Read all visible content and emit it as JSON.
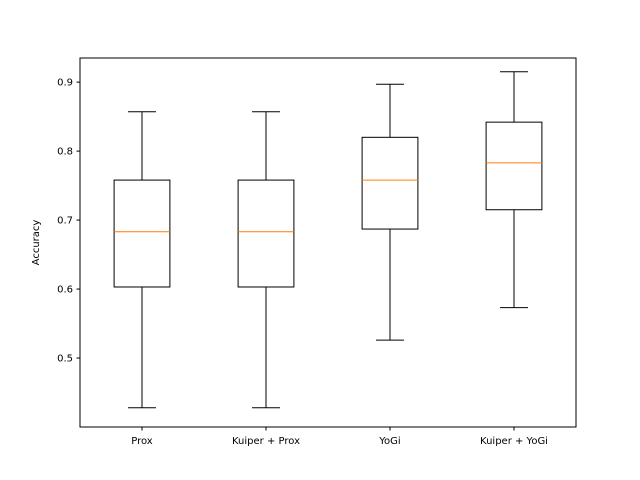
{
  "chart_data": {
    "type": "box",
    "title": "",
    "xlabel": "",
    "ylabel": "Accuracy",
    "ylim": [
      0.4,
      0.935
    ],
    "yticks": [
      "0.5",
      "0.6",
      "0.7",
      "0.8",
      "0.9"
    ],
    "grid": false,
    "categories": [
      "Prox",
      "Kuiper + Prox",
      "YoGi",
      "Kuiper + YoGi"
    ],
    "boxes": [
      {
        "whisker_low": 0.428,
        "q1": 0.603,
        "median": 0.683,
        "q3": 0.758,
        "whisker_high": 0.857
      },
      {
        "whisker_low": 0.428,
        "q1": 0.603,
        "median": 0.683,
        "q3": 0.758,
        "whisker_high": 0.857
      },
      {
        "whisker_low": 0.526,
        "q1": 0.687,
        "median": 0.758,
        "q3": 0.82,
        "whisker_high": 0.897
      },
      {
        "whisker_low": 0.573,
        "q1": 0.715,
        "median": 0.783,
        "q3": 0.842,
        "whisker_high": 0.915
      }
    ],
    "colors": {
      "box": "#000000",
      "median": "#ff7f0e",
      "axes": "#000000"
    }
  }
}
